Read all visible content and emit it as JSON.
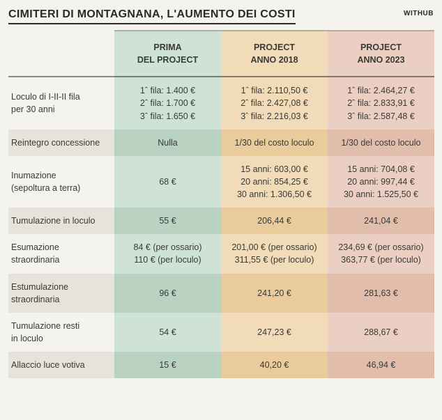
{
  "title": "CIMITERI DI MONTAGNANA, L'AUMENTO DEI COSTI",
  "brand": "WITHUB",
  "colors": {
    "background": "#f5f3ed",
    "col1_bg": "#cfe2d6",
    "col1_alt": "#b9d2c2",
    "col2_bg": "#f2dbb8",
    "col2_alt": "#eacb9c",
    "col3_bg": "#eccfc3",
    "col3_alt": "#e3bdac",
    "label_alt": "#e6e3da",
    "text": "#3a3a36"
  },
  "table": {
    "type": "table",
    "columns": [
      {
        "line1": "",
        "line2": ""
      },
      {
        "line1": "PRIMA",
        "line2": "DEL PROJECT"
      },
      {
        "line1": "PROJECT",
        "line2": "ANNO  2018"
      },
      {
        "line1": "PROJECT",
        "line2": "ANNO  2023"
      }
    ],
    "rows": [
      {
        "label_l1": "Loculo di I-II-II fila",
        "label_l2": "per 30 anni",
        "c1_l1": "1ˆ fila: 1.400 €",
        "c1_l2": "2ˆ fila: 1.700 €",
        "c1_l3": "3ˆ fila: 1.650 €",
        "c2_l1": "1ˆ fila: 2.110,50 €",
        "c2_l2": "2ˆ fila: 2.427,08 €",
        "c2_l3": "3ˆ fila: 2.216,03 €",
        "c3_l1": "1ˆ fila: 2.464,27 €",
        "c3_l2": "2ˆ fila: 2.833,91 €",
        "c3_l3": "3ˆ fila: 2.587,48 €"
      },
      {
        "label_l1": "Reintegro concessione",
        "c1_l1": "Nulla",
        "c2_l1": "1/30 del costo loculo",
        "c3_l1": "1/30 del costo loculo"
      },
      {
        "label_l1": "Inumazione",
        "label_l2": "(sepoltura a terra)",
        "c1_l1": "68 €",
        "c2_l1": "15 anni: 603,00 €",
        "c2_l2": "20 anni: 854,25 €",
        "c2_l3": "30 anni: 1.306,50 €",
        "c3_l1": "15 anni: 704,08 €",
        "c3_l2": "20 anni: 997,44 €",
        "c3_l3": "30 anni: 1.525,50 €"
      },
      {
        "label_l1": "Tumulazione in loculo",
        "c1_l1": "55 €",
        "c2_l1": "206,44 €",
        "c3_l1": "241,04 €"
      },
      {
        "label_l1": "Esumazione",
        "label_l2": "straordinaria",
        "c1_l1": "84 € (per ossario)",
        "c1_l2": "110 € (per loculo)",
        "c2_l1": "201,00 € (per ossario)",
        "c2_l2": "311,55 € (per loculo)",
        "c3_l1": "234,69 € (per ossario)",
        "c3_l2": "363,77 € (per loculo)"
      },
      {
        "label_l1": "Estumulazione",
        "label_l2": "straordinaria",
        "c1_l1": "96 €",
        "c2_l1": "241,20 €",
        "c3_l1": "281,63 €"
      },
      {
        "label_l1": "Tumulazione resti",
        "label_l2": "in loculo",
        "c1_l1": "54 €",
        "c2_l1": "247,23 €",
        "c3_l1": "288,67 €"
      },
      {
        "label_l1": "Allaccio luce votiva",
        "c1_l1": "15 €",
        "c2_l1": "40,20 €",
        "c3_l1": "46,94 €"
      }
    ]
  }
}
